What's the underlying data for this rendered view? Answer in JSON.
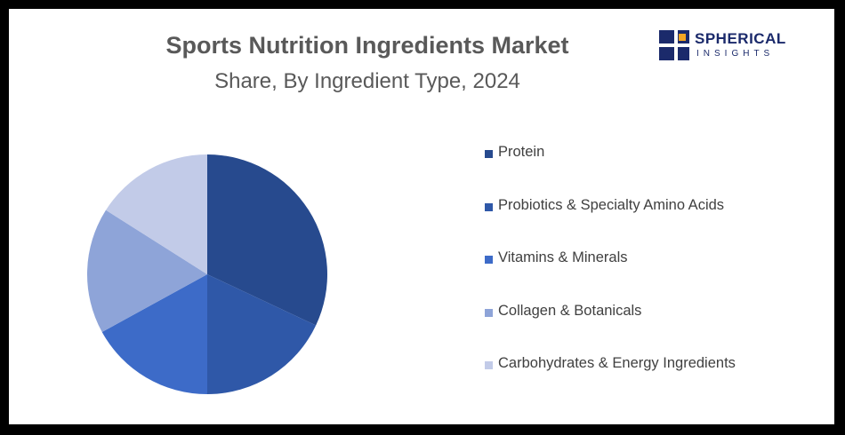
{
  "chart_data": {
    "type": "pie",
    "title": "Sports Nutrition Ingredients Market",
    "subtitle": "Share, By Ingredient Type, 2024",
    "categories": [
      "Protein",
      "Probiotics & Specialty Amino Acids",
      "Vitamins & Minerals",
      "Collagen & Botanicals",
      "Carbohydrates & Energy Ingredients"
    ],
    "values": [
      32,
      18,
      17,
      17,
      16
    ],
    "colors": [
      "#274a8e",
      "#2f58a8",
      "#3d6bc8",
      "#8ea4d8",
      "#c2cbe8"
    ],
    "legend_position": "right"
  },
  "logo": {
    "line1": "SPHERICAL",
    "line2": "INSIGHTS",
    "color": "#1b2a6b",
    "accent": "#f5a623"
  }
}
